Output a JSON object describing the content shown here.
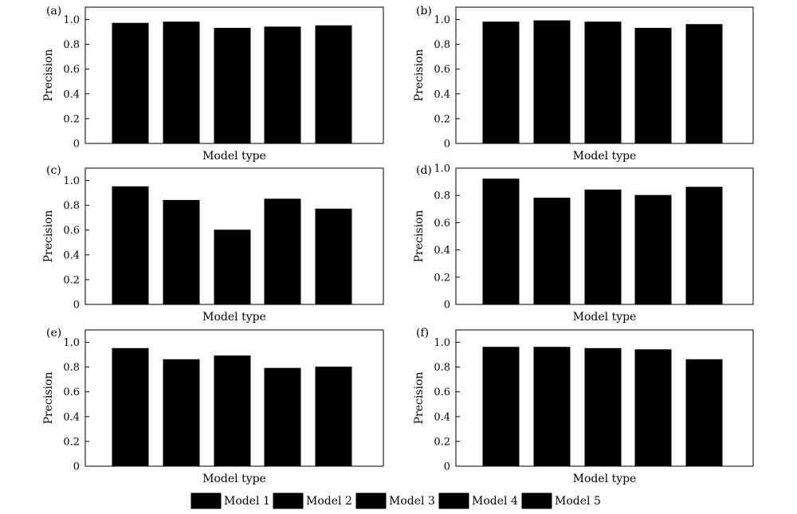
{
  "chart_data": [
    {
      "panel": "(a)",
      "type": "bar",
      "categories": [
        "Model 1",
        "Model 2",
        "Model 3",
        "Model 4",
        "Model 5"
      ],
      "values": [
        0.97,
        0.98,
        0.93,
        0.94,
        0.95
      ],
      "xlabel": "Model type",
      "ylabel": "Precision",
      "ylim": [
        0,
        1.1
      ],
      "yticks": [
        "0",
        "0.2",
        "0.4",
        "0.6",
        "0.8",
        "1.0"
      ]
    },
    {
      "panel": "(b)",
      "type": "bar",
      "categories": [
        "Model 1",
        "Model 2",
        "Model 3",
        "Model 4",
        "Model 5"
      ],
      "values": [
        0.98,
        0.99,
        0.98,
        0.93,
        0.96
      ],
      "xlabel": "Model type",
      "ylabel": "Precision",
      "ylim": [
        0,
        1.1
      ],
      "yticks": [
        "0",
        "0.2",
        "0.4",
        "0.6",
        "0.8",
        "1.0"
      ]
    },
    {
      "panel": "(c)",
      "type": "bar",
      "categories": [
        "Model 1",
        "Model 2",
        "Model 3",
        "Model 4",
        "Model 5"
      ],
      "values": [
        0.95,
        0.84,
        0.6,
        0.85,
        0.77
      ],
      "xlabel": "Model type",
      "ylabel": "Precision",
      "ylim": [
        0,
        1.1
      ],
      "yticks": [
        "0",
        "0.2",
        "0.4",
        "0.6",
        "0.8",
        "1.0"
      ]
    },
    {
      "panel": "(d)",
      "type": "bar",
      "categories": [
        "Model 1",
        "Model 2",
        "Model 3",
        "Model 4",
        "Model 5"
      ],
      "values": [
        0.92,
        0.78,
        0.84,
        0.8,
        0.86
      ],
      "xlabel": "Model type",
      "ylabel": "Precision",
      "ylim": [
        0,
        1.0
      ],
      "yticks": [
        "0",
        "0.2",
        "0.4",
        "0.6",
        "0.8",
        "1.0"
      ]
    },
    {
      "panel": "(e)",
      "type": "bar",
      "categories": [
        "Model 1",
        "Model 2",
        "Model 3",
        "Model 4",
        "Model 5"
      ],
      "values": [
        0.95,
        0.86,
        0.89,
        0.79,
        0.8
      ],
      "xlabel": "Model type",
      "ylabel": "Precision",
      "ylim": [
        0,
        1.1
      ],
      "yticks": [
        "0",
        "0.2",
        "0.4",
        "0.6",
        "0.8",
        "1.0"
      ]
    },
    {
      "panel": "(f)",
      "type": "bar",
      "categories": [
        "Model 1",
        "Model 2",
        "Model 3",
        "Model 4",
        "Model 5"
      ],
      "values": [
        0.96,
        0.96,
        0.95,
        0.94,
        0.86
      ],
      "xlabel": "Model type",
      "ylabel": "Precision",
      "ylim": [
        0,
        1.1
      ],
      "yticks": [
        "0",
        "0.2",
        "0.4",
        "0.6",
        "0.8",
        "1.0"
      ]
    }
  ],
  "legend": {
    "position": "bottom-center",
    "entries": [
      "Model 1",
      "Model 2",
      "Model 3",
      "Model 4",
      "Model 5"
    ]
  }
}
